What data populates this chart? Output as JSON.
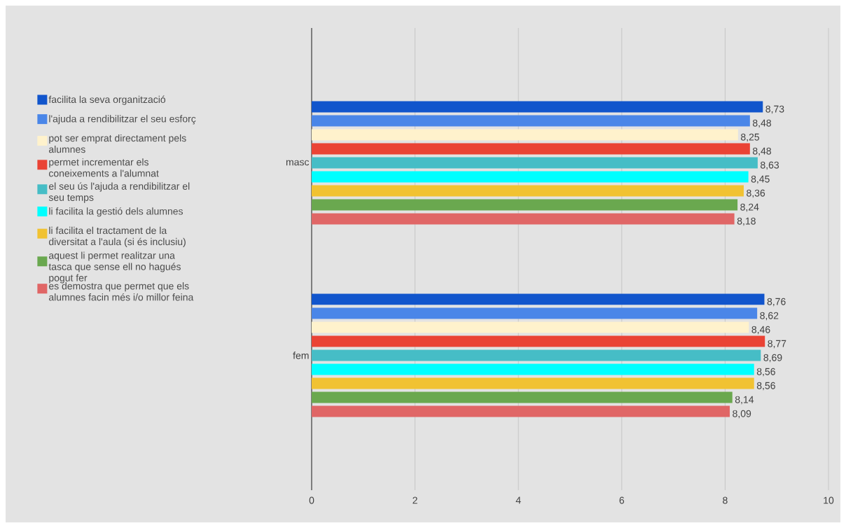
{
  "chart_data": {
    "type": "bar",
    "orientation": "horizontal",
    "categories": [
      "masc",
      "fem"
    ],
    "series": [
      {
        "name": "facilita la seva organització",
        "color": "#1155cc",
        "values": [
          8.73,
          8.76
        ],
        "value_labels": [
          "8,73",
          "8,76"
        ]
      },
      {
        "name": "l'ajuda a rendibilitzar el seu esforç",
        "color": "#4a86e8",
        "values": [
          8.48,
          8.62
        ],
        "value_labels": [
          "8,48",
          "8,62"
        ]
      },
      {
        "name": "pot ser emprat directament pels alumnes",
        "color": "#fff2cc",
        "values": [
          8.25,
          8.46
        ],
        "value_labels": [
          "8,25",
          "8,46"
        ]
      },
      {
        "name": "permet incrementar els coneixements a l'alumnat",
        "color": "#ea4335",
        "values": [
          8.48,
          8.77
        ],
        "value_labels": [
          "8,48",
          "8,77"
        ]
      },
      {
        "name": "el seu ús l'ajuda a rendibilitzar el seu temps",
        "color": "#46bdc6",
        "values": [
          8.63,
          8.69
        ],
        "value_labels": [
          "8,63",
          "8,69"
        ]
      },
      {
        "name": "li facilita la gestió dels alumnes",
        "color": "#00ffff",
        "values": [
          8.45,
          8.56
        ],
        "value_labels": [
          "8,45",
          "8,56"
        ]
      },
      {
        "name": "li facilita el tractament de la diversitat a l'aula (si és inclusiu)",
        "color": "#f1c232",
        "values": [
          8.36,
          8.56
        ],
        "value_labels": [
          "8,36",
          "8,56"
        ]
      },
      {
        "name": "aquest li permet realitzar una tasca que sense ell no hagués pogut fer",
        "color": "#6aa84f",
        "values": [
          8.24,
          8.14
        ],
        "value_labels": [
          "8,24",
          "8,14"
        ]
      },
      {
        "name": "es demostra que permet que els alumnes facin més i/o millor feina",
        "color": "#e06666",
        "values": [
          8.18,
          8.09
        ],
        "value_labels": [
          "8,18",
          "8,09"
        ]
      }
    ],
    "xlim": [
      0,
      10
    ],
    "xticks": [
      0,
      2,
      4,
      6,
      8,
      10
    ],
    "grid": "x",
    "legend": "left"
  }
}
